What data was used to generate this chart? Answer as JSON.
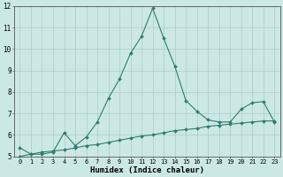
{
  "x": [
    0,
    1,
    2,
    3,
    4,
    5,
    6,
    7,
    8,
    9,
    10,
    11,
    12,
    13,
    14,
    15,
    16,
    17,
    18,
    19,
    20,
    21,
    22,
    23
  ],
  "y_main": [
    5.4,
    5.1,
    5.1,
    5.2,
    6.1,
    5.5,
    5.9,
    6.6,
    7.7,
    8.6,
    9.8,
    10.6,
    11.9,
    10.5,
    9.2,
    7.6,
    7.1,
    6.7,
    6.6,
    6.6,
    7.2,
    7.5,
    7.55,
    6.6
  ],
  "y_linear": [
    5.0,
    5.1,
    5.2,
    5.25,
    5.3,
    5.4,
    5.5,
    5.55,
    5.65,
    5.75,
    5.85,
    5.95,
    6.0,
    6.1,
    6.2,
    6.25,
    6.3,
    6.4,
    6.45,
    6.5,
    6.55,
    6.6,
    6.65,
    6.65
  ],
  "color": "#2e7d6e",
  "bg_color": "#cce8e4",
  "grid_color": "#aaccca",
  "xlabel": "Humidex (Indice chaleur)",
  "ylim": [
    5,
    12
  ],
  "xlim": [
    -0.5,
    23.5
  ],
  "yticks": [
    5,
    6,
    7,
    8,
    9,
    10,
    11,
    12
  ],
  "xticks": [
    0,
    1,
    2,
    3,
    4,
    5,
    6,
    7,
    8,
    9,
    10,
    11,
    12,
    13,
    14,
    15,
    16,
    17,
    18,
    19,
    20,
    21,
    22,
    23
  ],
  "marker": "D",
  "marker_size": 2.0,
  "linewidth": 0.8,
  "tick_fontsize": 5.0,
  "xlabel_fontsize": 6.5
}
